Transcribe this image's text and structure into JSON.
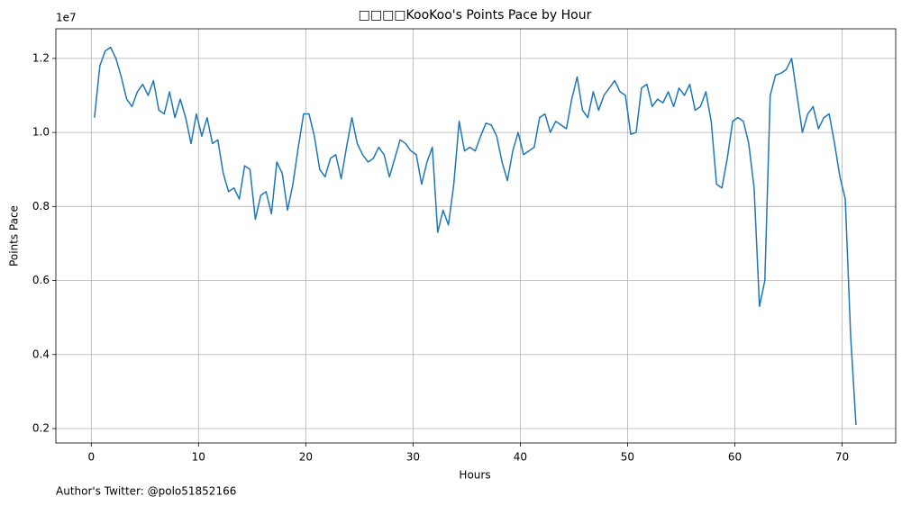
{
  "chart_data": {
    "type": "line",
    "title": "□□□□KooKoo's Points Pace by Hour",
    "x_label": "Hours",
    "y_label": "Points Pace",
    "y_offset_label": "1e7",
    "footnote": "Author's Twitter: @polo51852166",
    "xlim": [
      -3.3,
      75.0
    ],
    "ylim": [
      0.161,
      1.28
    ],
    "xticks": [
      0,
      10,
      20,
      30,
      40,
      50,
      60,
      70
    ],
    "yticks": [
      0.2,
      0.4,
      0.6,
      0.8,
      {
        "value": 1,
        "label": "1.0"
      },
      1.2
    ],
    "grid": true,
    "x": [
      0.3,
      0.8,
      1.3,
      1.8,
      2.3,
      2.8,
      3.3,
      3.8,
      4.3,
      4.8,
      5.3,
      5.8,
      6.3,
      6.8,
      7.3,
      7.8,
      8.3,
      8.8,
      9.3,
      9.8,
      10.3,
      10.8,
      11.3,
      11.8,
      12.3,
      12.8,
      13.3,
      13.8,
      14.3,
      14.8,
      15.3,
      15.8,
      16.3,
      16.8,
      17.3,
      17.8,
      18.3,
      18.8,
      19.3,
      19.8,
      20.3,
      20.8,
      21.3,
      21.8,
      22.3,
      22.8,
      23.3,
      23.8,
      24.3,
      24.8,
      25.3,
      25.8,
      26.3,
      26.8,
      27.3,
      27.8,
      28.3,
      28.8,
      29.3,
      29.8,
      30.3,
      30.8,
      31.3,
      31.8,
      32.3,
      32.8,
      33.3,
      33.8,
      34.3,
      34.8,
      35.3,
      35.8,
      36.3,
      36.8,
      37.3,
      37.8,
      38.3,
      38.8,
      39.3,
      39.8,
      40.3,
      40.8,
      41.3,
      41.8,
      42.3,
      42.8,
      43.3,
      43.8,
      44.3,
      44.8,
      45.3,
      45.8,
      46.3,
      46.8,
      47.3,
      47.8,
      48.3,
      48.8,
      49.3,
      49.8,
      50.3,
      50.8,
      51.3,
      51.8,
      52.3,
      52.8,
      53.3,
      53.8,
      54.3,
      54.8,
      55.3,
      55.8,
      56.3,
      56.8,
      57.3,
      57.8,
      58.3,
      58.8,
      59.3,
      59.8,
      60.3,
      60.8,
      61.3,
      61.8,
      62.3,
      62.8,
      63.3,
      63.8,
      64.3,
      64.8,
      65.3,
      65.8,
      66.3,
      66.8,
      67.3,
      67.8,
      68.3,
      68.8,
      69.3,
      69.8,
      70.3,
      70.8,
      71.3
    ],
    "series": [
      {
        "color": "#1f77b4",
        "values": [
          1.04,
          1.18,
          1.22,
          1.23,
          1.2,
          1.15,
          1.09,
          1.07,
          1.11,
          1.13,
          1.1,
          1.14,
          1.06,
          1.05,
          1.11,
          1.04,
          1.09,
          1.04,
          0.97,
          1.05,
          0.99,
          1.04,
          0.97,
          0.98,
          0.89,
          0.84,
          0.85,
          0.82,
          0.91,
          0.9,
          0.765,
          0.83,
          0.84,
          0.78,
          0.92,
          0.89,
          0.79,
          0.86,
          0.96,
          1.05,
          1.05,
          0.99,
          0.9,
          0.88,
          0.93,
          0.94,
          0.875,
          0.96,
          1.04,
          0.97,
          0.94,
          0.92,
          0.93,
          0.96,
          0.94,
          0.88,
          0.93,
          0.98,
          0.97,
          0.95,
          0.94,
          0.86,
          0.92,
          0.96,
          0.73,
          0.79,
          0.75,
          0.86,
          1.03,
          0.95,
          0.96,
          0.95,
          0.99,
          1.025,
          1.02,
          0.99,
          0.92,
          0.87,
          0.95,
          1.0,
          0.94,
          0.95,
          0.96,
          1.04,
          1.05,
          1.0,
          1.03,
          1.02,
          1.01,
          1.09,
          1.15,
          1.06,
          1.04,
          1.11,
          1.06,
          1.1,
          1.12,
          1.14,
          1.11,
          1.1,
          0.995,
          1.0,
          1.12,
          1.13,
          1.07,
          1.09,
          1.08,
          1.11,
          1.07,
          1.12,
          1.1,
          1.13,
          1.06,
          1.07,
          1.11,
          1.03,
          0.86,
          0.85,
          0.93,
          1.03,
          1.04,
          1.03,
          0.97,
          0.85,
          0.53,
          0.6,
          1.1,
          1.155,
          1.16,
          1.17,
          1.2,
          1.1,
          1.0,
          1.05,
          1.07,
          1.01,
          1.04,
          1.05,
          0.97,
          0.88,
          0.82,
          0.45,
          0.21
        ]
      }
    ]
  }
}
